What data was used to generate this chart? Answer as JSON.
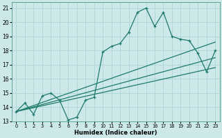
{
  "title": "",
  "xlabel": "Humidex (Indice chaleur)",
  "ylabel": "",
  "xlim": [
    -0.5,
    23.5
  ],
  "ylim": [
    13,
    21.4
  ],
  "xticks": [
    0,
    1,
    2,
    3,
    4,
    5,
    6,
    7,
    8,
    9,
    10,
    11,
    12,
    13,
    14,
    15,
    16,
    17,
    18,
    19,
    20,
    21,
    22,
    23
  ],
  "yticks": [
    13,
    14,
    15,
    16,
    17,
    18,
    19,
    20,
    21
  ],
  "bg_color": "#cce8e8",
  "line_color": "#1e7a6e",
  "grid_color": "#b0d8d8",
  "series1_x": [
    0,
    1,
    2,
    3,
    4,
    5,
    6,
    7,
    8,
    9,
    10,
    11,
    12,
    13,
    14,
    15,
    16,
    17,
    18,
    19,
    20,
    21,
    22,
    23
  ],
  "series1_y": [
    13.7,
    14.3,
    13.5,
    14.8,
    15.0,
    14.5,
    13.1,
    13.3,
    14.5,
    14.7,
    17.9,
    18.3,
    18.5,
    19.3,
    20.7,
    21.0,
    19.7,
    20.7,
    19.0,
    18.8,
    18.7,
    17.8,
    16.5,
    18.0
  ],
  "trendline1_x": [
    0,
    10,
    23
  ],
  "trendline1_y": [
    13.7,
    16.0,
    18.6
  ],
  "trendline2_x": [
    0,
    10,
    23
  ],
  "trendline2_y": [
    13.7,
    15.5,
    18.0
  ],
  "trendline3_x": [
    0,
    10,
    23
  ],
  "trendline3_y": [
    13.7,
    15.2,
    17.5
  ]
}
